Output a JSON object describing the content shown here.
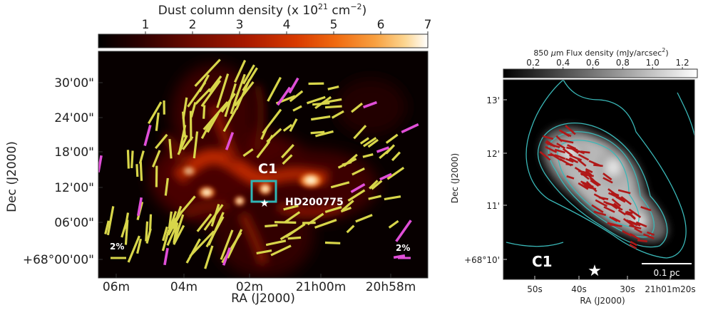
{
  "chart_data": [
    {
      "type": "heatmap",
      "title": "Dust column density (x 10",
      "title_sup1": "21",
      "title_unit": " cm",
      "title_sup2": "−2",
      "title_end": ")",
      "colorbar_ticks": [
        "1",
        "2",
        "3",
        "4",
        "5",
        "6",
        "7"
      ],
      "colorbar_range": [
        0,
        7
      ],
      "colormap": [
        "#000000",
        "#2a0000",
        "#6b0a00",
        "#a81a00",
        "#d83a00",
        "#f06a10",
        "#f8a040",
        "#fcd590",
        "#ffffff"
      ],
      "xlabel": "RA (J2000)",
      "ylabel": "Dec (J2000)",
      "x_ticks": [
        "06m",
        "04m",
        "02m",
        "21h00m",
        "20h58m"
      ],
      "y_ticks": [
        "30'00\"",
        "24'00\"",
        "18'00\"",
        "12'00\"",
        "06'00\"",
        "+68°00'00\""
      ],
      "annotations": {
        "cloud": "C1",
        "star": "HD200775",
        "scale_left": "2%",
        "scale_right": "2%"
      },
      "vector_colors": {
        "primary": "#d8d64a",
        "secondary": "#e04fd8"
      }
    },
    {
      "type": "heatmap",
      "title_pre": "850 ",
      "title_mu": "μ",
      "title_post": "m Flux density (mJy/arcsec",
      "title_sup": "2",
      "title_end": ")",
      "colorbar_ticks": [
        "0.2",
        "0.4",
        "0.6",
        "0.8",
        "1.0",
        "1.2"
      ],
      "colorbar_range": [
        0,
        1.3
      ],
      "xlabel": "RA (J2000)",
      "ylabel": "Dec (J2000)",
      "x_ticks": [
        "50s",
        "40s",
        "30s",
        "21h01m20s"
      ],
      "y_ticks": [
        "13'",
        "12'",
        "11'",
        "+68°10'"
      ],
      "annotations": {
        "cloud": "C1",
        "scale": "0.1 pc"
      },
      "vector_color": "#b01818",
      "contour_color": "#3ab8b8"
    }
  ]
}
